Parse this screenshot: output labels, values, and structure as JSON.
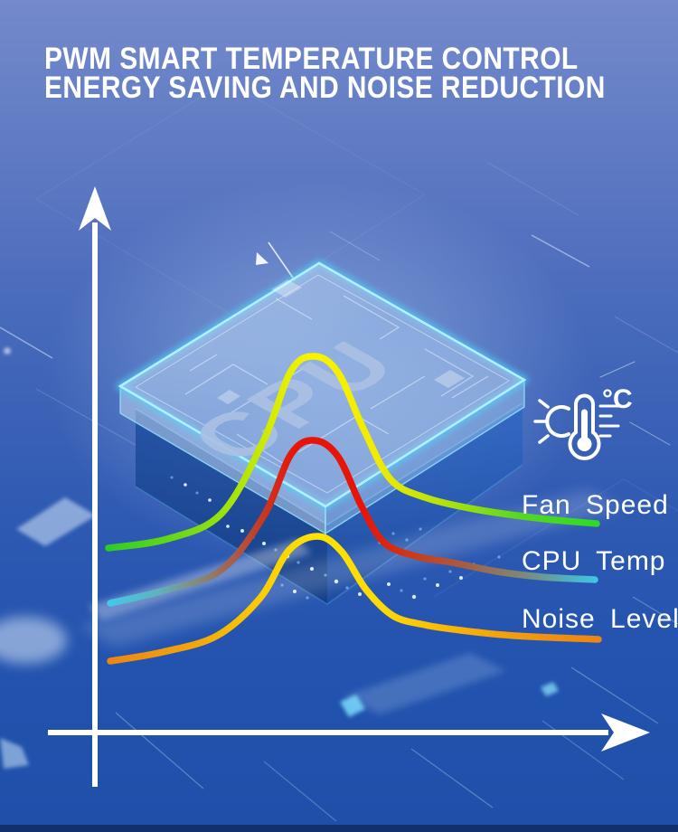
{
  "title": {
    "line1": "PWM SMART TEMPERATURE CONTROL",
    "line2": "ENERGY SAVING AND NOISE REDUCTION"
  },
  "cpu_chip": {
    "label": "CPU"
  },
  "icon": {
    "name": "thermometer-celsius-icon",
    "unit_label": "°C"
  },
  "chart_data": {
    "type": "line",
    "title": "PWM SMART TEMPERATURE CONTROL — ENERGY SAVING AND NOISE REDUCTION",
    "x_axis": {
      "label": "",
      "ticks": []
    },
    "y_axis": {
      "label": "",
      "ticks": []
    },
    "legend_position": "right",
    "style": {
      "stroke_width": 7.5,
      "gradient_x_range": [
        120,
        662
      ]
    },
    "series": [
      {
        "id": "fan-speed",
        "label": "Fan Speed",
        "theme": "green-yellow",
        "points": [
          [
            120,
            606
          ],
          [
            185,
            596
          ],
          [
            245,
            568
          ],
          [
            292,
            486
          ],
          [
            322,
            410
          ],
          [
            348,
            394
          ],
          [
            374,
            412
          ],
          [
            402,
            474
          ],
          [
            432,
            530
          ],
          [
            470,
            550
          ],
          [
            525,
            563
          ],
          [
            595,
            573
          ],
          [
            660,
            579
          ]
        ],
        "gradient": [
          [
            0,
            "#2ecc26"
          ],
          [
            0.2,
            "#84de11"
          ],
          [
            0.34,
            "#d9ec03"
          ],
          [
            0.42,
            "#f8f400"
          ],
          [
            0.55,
            "#f2ea00"
          ],
          [
            0.68,
            "#b6e10c"
          ],
          [
            0.84,
            "#56d71f"
          ],
          [
            1,
            "#30d828"
          ]
        ]
      },
      {
        "id": "cpu-temp",
        "label": "CPU Temp",
        "theme": "cyan-red-cyan",
        "points": [
          [
            122,
            667
          ],
          [
            185,
            652
          ],
          [
            245,
            630
          ],
          [
            292,
            570
          ],
          [
            322,
            502
          ],
          [
            348,
            487
          ],
          [
            374,
            505
          ],
          [
            400,
            560
          ],
          [
            425,
            600
          ],
          [
            460,
            615
          ],
          [
            500,
            622
          ],
          [
            550,
            632
          ],
          [
            600,
            638
          ],
          [
            658,
            641
          ]
        ],
        "gradient": [
          [
            0,
            "#41c9ea"
          ],
          [
            0.1,
            "#5fb3bd"
          ],
          [
            0.2,
            "#8c8070"
          ],
          [
            0.3,
            "#c04028"
          ],
          [
            0.38,
            "#e91408"
          ],
          [
            0.52,
            "#e91408"
          ],
          [
            0.62,
            "#cc3a18"
          ],
          [
            0.74,
            "#a26248"
          ],
          [
            0.85,
            "#7c8a7a"
          ],
          [
            0.93,
            "#54acba"
          ],
          [
            1,
            "#3fc5ea"
          ]
        ]
      },
      {
        "id": "noise-level",
        "label": "Noise Level",
        "theme": "orange-yellow-orange",
        "points": [
          [
            122,
            731
          ],
          [
            180,
            721
          ],
          [
            240,
            703
          ],
          [
            288,
            661
          ],
          [
            320,
            608
          ],
          [
            352,
            593
          ],
          [
            378,
            610
          ],
          [
            405,
            652
          ],
          [
            435,
            681
          ],
          [
            470,
            691
          ],
          [
            510,
            697
          ],
          [
            570,
            703
          ],
          [
            662,
            707
          ]
        ],
        "gradient": [
          [
            0,
            "#ee8512"
          ],
          [
            0.18,
            "#f2a70c"
          ],
          [
            0.32,
            "#fbcf03"
          ],
          [
            0.43,
            "#ffe400"
          ],
          [
            0.56,
            "#fdd903"
          ],
          [
            0.72,
            "#f7b108"
          ],
          [
            0.88,
            "#f0940f"
          ],
          [
            1,
            "#ed8512"
          ]
        ]
      }
    ]
  },
  "colors": {
    "bg_top": "#7489cb",
    "bg_bottom": "#1e50aa",
    "bottom_band": "#12306d",
    "axis": "#ffffff",
    "chip_glow": "#4fd8ff",
    "chip_text": "#aabfe3",
    "title_text": "#ffffff"
  }
}
